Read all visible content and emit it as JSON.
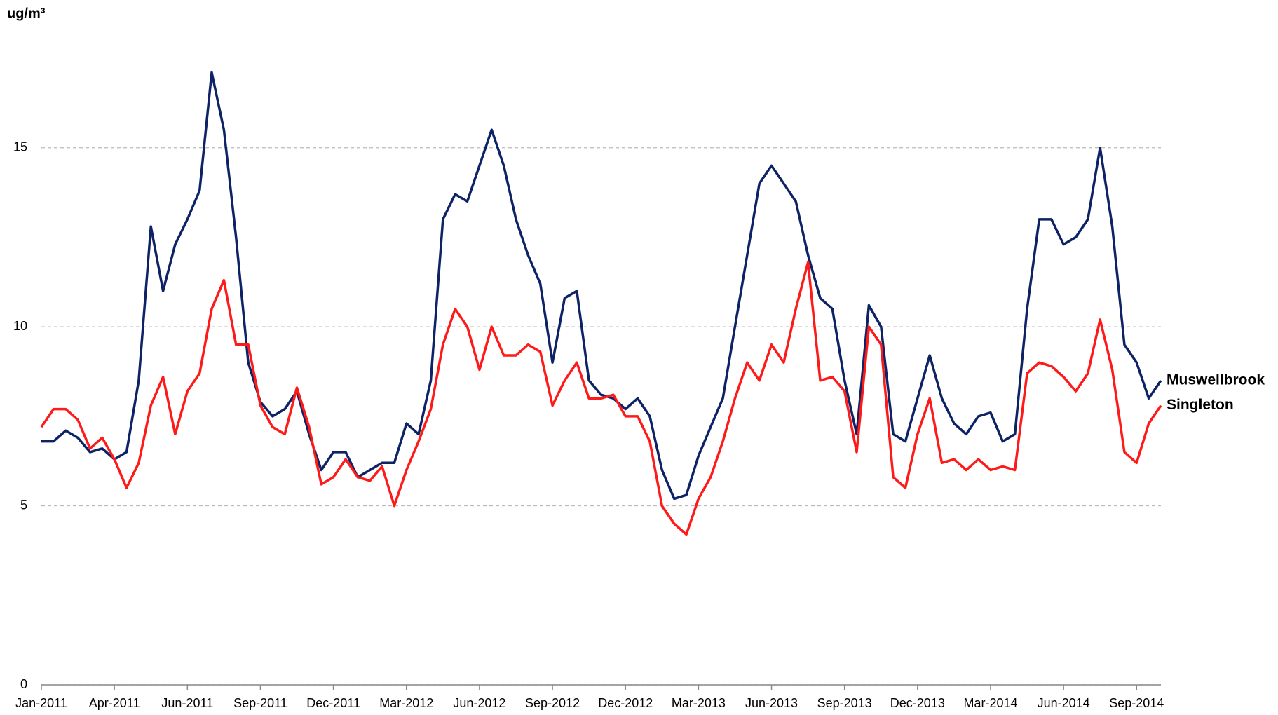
{
  "chart_data": {
    "type": "line",
    "y_label": "ug/m³",
    "categories": [
      "Jan-2011",
      null,
      null,
      null,
      null,
      null,
      "Apr-2011",
      null,
      null,
      null,
      null,
      null,
      "Jun-2011",
      null,
      null,
      null,
      null,
      null,
      "Sep-2011",
      null,
      null,
      null,
      null,
      null,
      "Dec-2011",
      null,
      null,
      null,
      null,
      null,
      "Mar-2012",
      null,
      null,
      null,
      null,
      null,
      "Jun-2012",
      null,
      null,
      null,
      null,
      null,
      "Sep-2012",
      null,
      null,
      null,
      null,
      null,
      "Dec-2012",
      null,
      null,
      null,
      null,
      null,
      "Mar-2013",
      null,
      null,
      null,
      null,
      null,
      "Jun-2013",
      null,
      null,
      null,
      null,
      null,
      "Sep-2013",
      null,
      null,
      null,
      null,
      null,
      "Dec-2013",
      null,
      null,
      null,
      null,
      null,
      "Mar-2014",
      null,
      null,
      null,
      null,
      null,
      "Jun-2014",
      null,
      null,
      null,
      null,
      null,
      "Sep-2014",
      null,
      null
    ],
    "series": [
      {
        "name": "Muswellbrook",
        "color": "#0d2366",
        "values": [
          6.8,
          6.8,
          7.1,
          6.9,
          6.5,
          6.6,
          6.3,
          6.5,
          8.5,
          12.8,
          11,
          12.3,
          13,
          13.8,
          17.1,
          15.5,
          12.5,
          9,
          7.9,
          7.5,
          7.7,
          8.2,
          7.0,
          6.0,
          6.5,
          6.5,
          5.8,
          6.0,
          6.2,
          6.2,
          7.3,
          7.0,
          8.5,
          13.0,
          13.7,
          13.5,
          14.5,
          15.5,
          14.5,
          13.0,
          12.0,
          11.2,
          9.0,
          10.8,
          11.0,
          8.5,
          8.1,
          8.0,
          7.7,
          8.0,
          7.5,
          6.0,
          5.2,
          5.3,
          6.4,
          7.2,
          8.0,
          10.0,
          12.0,
          14.0,
          14.5,
          14.0,
          13.5,
          12.0,
          10.8,
          10.5,
          8.5,
          7.0,
          10.6,
          10.0,
          7.0,
          6.8,
          8.0,
          9.2,
          8.0,
          7.3,
          7.0,
          7.5,
          7.6,
          6.8,
          7.0,
          10.5,
          13.0,
          13.0,
          12.3,
          12.5,
          13.0,
          15.0,
          12.8,
          9.5,
          9.0,
          8.0,
          8.5
        ]
      },
      {
        "name": "Singleton",
        "color": "#ff1a1a",
        "values": [
          7.2,
          7.7,
          7.7,
          7.4,
          6.6,
          6.9,
          6.3,
          5.5,
          6.2,
          7.8,
          8.6,
          7.0,
          8.2,
          8.7,
          10.5,
          11.3,
          9.5,
          9.5,
          7.8,
          7.2,
          7.0,
          8.3,
          7.2,
          5.6,
          5.8,
          6.3,
          5.8,
          5.7,
          6.1,
          5.0,
          6.0,
          6.8,
          7.7,
          9.5,
          10.5,
          10.0,
          8.8,
          10.0,
          9.2,
          9.2,
          9.5,
          9.3,
          7.8,
          8.5,
          9.0,
          8.0,
          8.0,
          8.1,
          7.5,
          7.5,
          6.8,
          5.0,
          4.5,
          4.2,
          5.2,
          5.8,
          6.8,
          8.0,
          9.0,
          8.5,
          9.5,
          9.0,
          10.5,
          11.8,
          8.5,
          8.6,
          8.2,
          6.5,
          10.0,
          9.5,
          5.8,
          5.5,
          7.0,
          8.0,
          6.2,
          6.3,
          6.0,
          6.3,
          6.0,
          6.1,
          6.0,
          8.7,
          9.0,
          8.9,
          8.6,
          8.2,
          8.7,
          10.2,
          8.8,
          6.5,
          6.2,
          7.3,
          7.8
        ]
      }
    ],
    "ylim": [
      0,
      17.5
    ],
    "yticks": [
      0,
      5,
      10,
      15
    ],
    "grid": true,
    "legend": "line-end"
  }
}
